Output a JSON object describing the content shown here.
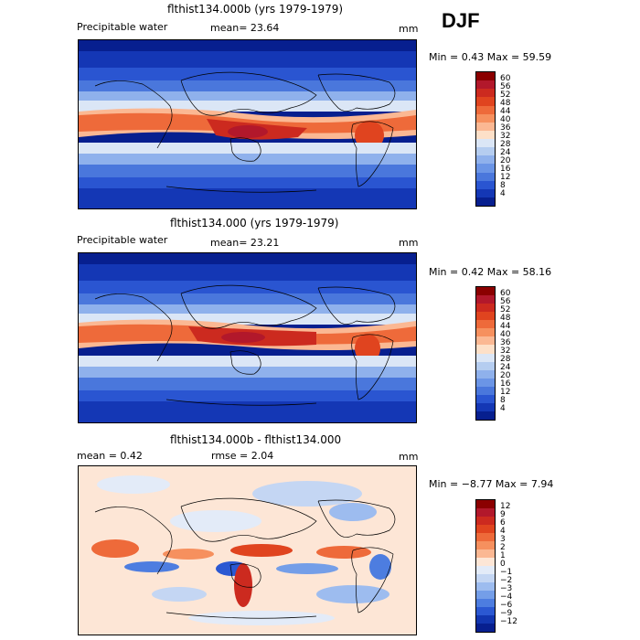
{
  "season": "DJF",
  "panels": [
    {
      "title": "flthist134.000b (yrs 1979-1979)",
      "varname": "Precipitable water",
      "stat_text": "mean=  23.64",
      "units": "mm",
      "minmax": "Min =    0.43 Max =   59.59",
      "levels": [
        "60",
        "56",
        "52",
        "48",
        "44",
        "40",
        "36",
        "32",
        "28",
        "24",
        "20",
        "16",
        "12",
        "8",
        "4"
      ],
      "colors": [
        "#8b0000",
        "#b2182b",
        "#cc2a1f",
        "#e0441f",
        "#ee6a3a",
        "#f6905e",
        "#fbb893",
        "#fde0c8",
        "#dbe6f6",
        "#b5cdf0",
        "#8fb1ec",
        "#6b95e6",
        "#4a77dc",
        "#2a55d1",
        "#1437b5",
        "#071f8f"
      ]
    },
    {
      "title": "flthist134.000 (yrs 1979-1979)",
      "varname": "Precipitable water",
      "stat_text": "mean=  23.21",
      "units": "mm",
      "minmax": "Min =    0.42 Max =   58.16",
      "levels": [
        "60",
        "56",
        "52",
        "48",
        "44",
        "40",
        "36",
        "32",
        "28",
        "24",
        "20",
        "16",
        "12",
        "8",
        "4"
      ],
      "colors": [
        "#8b0000",
        "#b2182b",
        "#cc2a1f",
        "#e0441f",
        "#ee6a3a",
        "#f6905e",
        "#fbb893",
        "#fde0c8",
        "#dbe6f6",
        "#b5cdf0",
        "#8fb1ec",
        "#6b95e6",
        "#4a77dc",
        "#2a55d1",
        "#1437b5",
        "#071f8f"
      ]
    },
    {
      "title": "flthist134.000b - flthist134.000",
      "mean_text": "mean =     0.42",
      "rmse_text": "rmse =    2.04",
      "units": "mm",
      "minmax": "Min =  −8.77 Max =    7.94",
      "levels": [
        "12",
        "9",
        "6",
        "4",
        "3",
        "2",
        "1",
        "0",
        "−1",
        "−2",
        "−3",
        "−4",
        "−6",
        "−9",
        "−12"
      ],
      "colors": [
        "#8b0000",
        "#b2182b",
        "#cc2a1f",
        "#e0441f",
        "#ee6a3a",
        "#f6905e",
        "#fbb893",
        "#fde6d6",
        "#e3ebf8",
        "#c4d6f3",
        "#9dbcef",
        "#749ee8",
        "#4d7de0",
        "#2b58d2",
        "#1236b0",
        "#071f8f"
      ]
    }
  ],
  "chart_data": [
    {
      "type": "heatmap",
      "title": "flthist134.000b (yrs 1979-1979)",
      "variable": "Precipitable water",
      "units": "mm",
      "mean": 23.64,
      "min": 0.43,
      "max": 59.59,
      "contour_levels": [
        4,
        8,
        12,
        16,
        20,
        24,
        28,
        32,
        36,
        40,
        44,
        48,
        52,
        56,
        60
      ]
    },
    {
      "type": "heatmap",
      "title": "flthist134.000 (yrs 1979-1979)",
      "variable": "Precipitable water",
      "units": "mm",
      "mean": 23.21,
      "min": 0.42,
      "max": 58.16,
      "contour_levels": [
        4,
        8,
        12,
        16,
        20,
        24,
        28,
        32,
        36,
        40,
        44,
        48,
        52,
        56,
        60
      ]
    },
    {
      "type": "heatmap",
      "title": "flthist134.000b - flthist134.000",
      "units": "mm",
      "mean": 0.42,
      "rmse": 2.04,
      "min": -8.77,
      "max": 7.94,
      "contour_levels": [
        -12,
        -9,
        -6,
        -4,
        -3,
        -2,
        -1,
        0,
        1,
        2,
        3,
        4,
        6,
        9,
        12
      ]
    }
  ]
}
